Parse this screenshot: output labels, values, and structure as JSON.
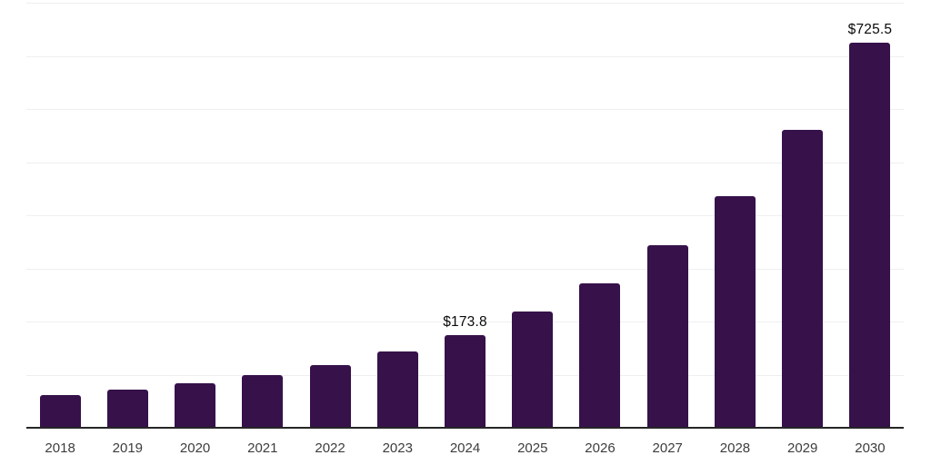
{
  "chart": {
    "background": "#ffffff",
    "bar_color": "#36114a",
    "gridline_color": "#efefef",
    "axis_line_color": "#262626",
    "tick_label_color": "#3d3d3d",
    "value_label_color": "#0a0a0a"
  },
  "chart_data": {
    "type": "bar",
    "title": "",
    "xlabel": "",
    "ylabel": "",
    "categories": [
      "2018",
      "2019",
      "2020",
      "2021",
      "2022",
      "2023",
      "2024",
      "2025",
      "2026",
      "2027",
      "2028",
      "2029",
      "2030"
    ],
    "values": [
      61.5,
      71.8,
      83.8,
      99.1,
      118.0,
      143.6,
      173.8,
      218.8,
      271.8,
      343.6,
      436.0,
      560.7,
      725.5
    ],
    "data_labels": {
      "2024": "$173.8",
      "2030": "$725.5"
    },
    "ylim": [
      0,
      800
    ],
    "gridline_step": 100,
    "grid": "horizontal-only",
    "y_tick_labels_shown": false,
    "legend": "none"
  }
}
